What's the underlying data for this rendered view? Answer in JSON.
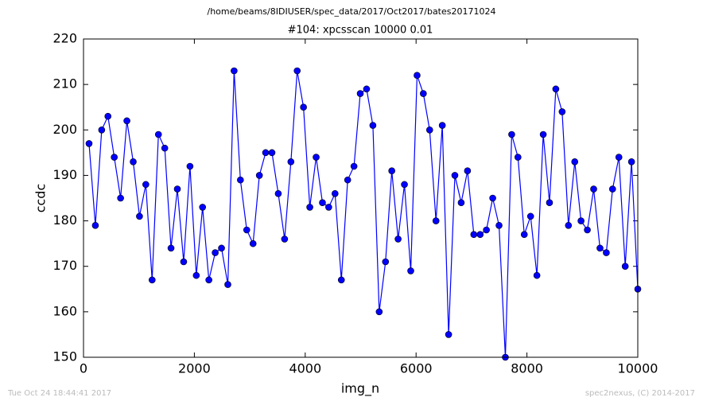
{
  "chart_data": {
    "type": "line",
    "suptitle": "/home/beams/8IDIUSER/spec_data/2017/Oct2017/bates20171024",
    "title": "#104: xpcsscan 10000 0.01",
    "xlabel": "img_n",
    "ylabel": "ccdc",
    "footer_left": "Tue Oct 24 18:44:41 2017",
    "footer_right": "spec2nexus, (C) 2014-2017",
    "x": [
      100,
      214,
      328,
      441,
      555,
      669,
      783,
      897,
      1010,
      1124,
      1238,
      1352,
      1466,
      1579,
      1693,
      1807,
      1921,
      2035,
      2148,
      2262,
      2376,
      2490,
      2604,
      2717,
      2831,
      2945,
      3059,
      3173,
      3286,
      3400,
      3514,
      3628,
      3742,
      3855,
      3969,
      4083,
      4197,
      4311,
      4424,
      4538,
      4652,
      4766,
      4880,
      4993,
      5107,
      5221,
      5335,
      5449,
      5562,
      5676,
      5790,
      5904,
      6018,
      6131,
      6245,
      6359,
      6473,
      6587,
      6700,
      6814,
      6928,
      7042,
      7156,
      7269,
      7383,
      7497,
      7611,
      7725,
      7838,
      7952,
      8066,
      8180,
      8294,
      8407,
      8521,
      8635,
      8749,
      8863,
      8976,
      9090,
      9204,
      9318,
      9432,
      9545,
      9659,
      9773,
      9887,
      10000
    ],
    "series": [
      {
        "color": "#0000ff",
        "values": [
          197,
          179,
          200,
          203,
          194,
          185,
          202,
          193,
          181,
          188,
          167,
          199,
          196,
          174,
          187,
          171,
          192,
          168,
          183,
          167,
          173,
          174,
          166,
          213,
          189,
          178,
          175,
          190,
          195,
          195,
          186,
          176,
          193,
          213,
          205,
          183,
          194,
          184,
          183,
          186,
          167,
          189,
          192,
          208,
          209,
          201,
          160,
          171,
          191,
          176,
          188,
          169,
          212,
          208,
          200,
          180,
          201,
          155,
          190,
          184,
          191,
          177,
          177,
          178,
          185,
          179,
          150,
          199,
          194,
          177,
          181,
          168,
          199,
          184,
          209,
          204,
          179,
          193,
          180,
          178,
          187,
          174,
          173,
          187,
          194,
          170,
          193,
          165
        ]
      }
    ],
    "xlim": [
      0,
      10000
    ],
    "xticks": [
      0,
      2000,
      4000,
      6000,
      8000,
      10000
    ],
    "ylim": [
      150,
      220
    ],
    "yticks": [
      150,
      160,
      170,
      180,
      190,
      200,
      210,
      220
    ]
  }
}
